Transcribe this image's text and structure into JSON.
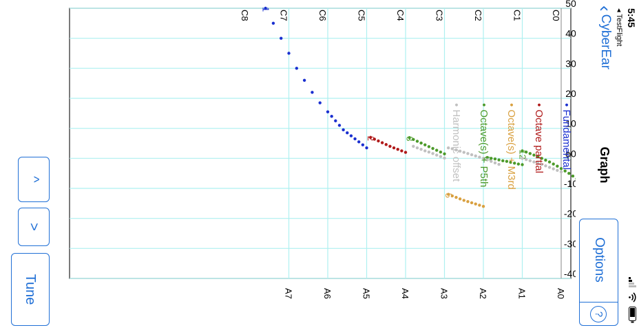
{
  "status_bar": {
    "time": "5:45",
    "back_app": "◂ TestFlight"
  },
  "nav": {
    "back_label": "CyberEar",
    "title": "Graph"
  },
  "options": {
    "label": "Options",
    "help_symbol": "?"
  },
  "buttons": {
    "up": "^",
    "down": ">",
    "tune": "Tune"
  },
  "colors": {
    "accent": "#1f6fd6",
    "grid": "#aef0f0"
  },
  "legend": [
    {
      "label": "Fundamental",
      "color": "#1a2fd0"
    },
    {
      "label": "Octave partial",
      "color": "#b01a1a"
    },
    {
      "label": "Octave(s) + M3rd",
      "color": "#d9a040"
    },
    {
      "label": "Octave(s) + P5th",
      "color": "#4c9a2a"
    },
    {
      "label": "Harmonic offset",
      "color": "#c0c0c0"
    }
  ],
  "chart_data": {
    "type": "scatter",
    "x_tick_labels": [
      "A0",
      "A1",
      "A2",
      "A3",
      "A4",
      "A5",
      "A6",
      "A7"
    ],
    "top_tick_labels": [
      "C0",
      "C1",
      "C2",
      "C3",
      "C4",
      "C5",
      "C6",
      "C7",
      "C8"
    ],
    "y_tick_labels": [
      "50",
      "40",
      "30",
      "20",
      "10",
      "ϕ0",
      "-10",
      "-20",
      "-30",
      "-40"
    ],
    "ylim": [
      -40,
      50
    ],
    "series": [
      {
        "name": "Fundamental",
        "label": "1",
        "color": "#1a2fd0",
        "points": [
          [
            5.0,
            3.5
          ],
          [
            5.1,
            4.5
          ],
          [
            5.2,
            5.5
          ],
          [
            5.3,
            6.5
          ],
          [
            5.4,
            7.5
          ],
          [
            5.5,
            8.5
          ],
          [
            5.6,
            9.5
          ],
          [
            5.7,
            11
          ],
          [
            5.8,
            12.5
          ],
          [
            5.9,
            14
          ],
          [
            6.0,
            15.5
          ],
          [
            6.2,
            18.5
          ],
          [
            6.4,
            22
          ],
          [
            6.6,
            26
          ],
          [
            6.8,
            30
          ],
          [
            7.0,
            35
          ],
          [
            7.2,
            40
          ],
          [
            7.4,
            45
          ],
          [
            7.6,
            50
          ]
        ]
      },
      {
        "name": "Octave partial",
        "label": "2",
        "color": "#b01a1a",
        "points": [
          [
            4.0,
            2
          ],
          [
            4.1,
            2.5
          ],
          [
            4.2,
            3
          ],
          [
            4.3,
            3.5
          ],
          [
            4.4,
            4
          ],
          [
            4.5,
            4.6
          ],
          [
            4.6,
            5.2
          ],
          [
            4.7,
            5.8
          ],
          [
            4.8,
            6.4
          ],
          [
            4.9,
            7
          ]
        ]
      },
      {
        "name": "Octave(s) + M3rd",
        "label": "5",
        "color": "#d9a040",
        "points": [
          [
            2.0,
            -16
          ],
          [
            2.1,
            -15.6
          ],
          [
            2.2,
            -15.2
          ],
          [
            2.3,
            -14.8
          ],
          [
            2.4,
            -14.4
          ],
          [
            2.5,
            -14
          ],
          [
            2.6,
            -13.5
          ],
          [
            2.7,
            -13
          ],
          [
            2.8,
            -12.5
          ],
          [
            2.9,
            -12
          ]
        ]
      },
      {
        "name": "Octave(s) + P5th",
        "label": "12",
        "color": "#4c9a2a",
        "points": [
          [
            -0.7,
            -9.5
          ],
          [
            -0.6,
            -8.6
          ],
          [
            -0.5,
            -7.7
          ],
          [
            -0.4,
            -6.8
          ],
          [
            -0.3,
            -5.9
          ],
          [
            -0.2,
            -5
          ],
          [
            -0.1,
            -4.2
          ],
          [
            0,
            -3.4
          ],
          [
            0.1,
            -2.6
          ],
          [
            0.2,
            -1.9
          ],
          [
            0.3,
            -1.2
          ],
          [
            0.4,
            -0.6
          ],
          [
            0.5,
            0
          ],
          [
            0.6,
            0.6
          ],
          [
            0.7,
            1.1
          ],
          [
            0.8,
            1.6
          ],
          [
            0.9,
            2.1
          ],
          [
            1.0,
            2.5
          ]
        ]
      },
      {
        "name": "Octave(s) + P5th",
        "label": "6",
        "color": "#4c9a2a",
        "points": [
          [
            1.0,
            -2.1
          ],
          [
            1.1,
            -1.9
          ],
          [
            1.2,
            -1.6
          ],
          [
            1.3,
            -1.3
          ],
          [
            1.4,
            -1
          ],
          [
            1.5,
            -0.8
          ],
          [
            1.6,
            -0.5
          ],
          [
            1.7,
            -0.2
          ],
          [
            1.8,
            0
          ],
          [
            1.9,
            0.3
          ]
        ]
      },
      {
        "name": "Octave(s) + P5th",
        "label": "3",
        "color": "#4c9a2a",
        "points": [
          [
            3.0,
            1.5
          ],
          [
            3.1,
            2.1
          ],
          [
            3.2,
            2.7
          ],
          [
            3.3,
            3.3
          ],
          [
            3.4,
            3.9
          ],
          [
            3.5,
            4.5
          ],
          [
            3.6,
            5.1
          ],
          [
            3.7,
            5.7
          ],
          [
            3.8,
            6.3
          ],
          [
            3.9,
            6.9
          ]
        ]
      },
      {
        "name": "Harmonic offset",
        "label": "",
        "color": "#c0c0c0",
        "points": [
          [
            0,
            -4.5
          ],
          [
            0.1,
            -4
          ],
          [
            0.2,
            -3.5
          ],
          [
            0.3,
            -3
          ],
          [
            0.4,
            -2.5
          ],
          [
            0.5,
            -2
          ],
          [
            0.6,
            -1.6
          ],
          [
            0.7,
            -1.2
          ],
          [
            0.8,
            -0.8
          ],
          [
            0.9,
            -0.4
          ],
          [
            1.0,
            0
          ],
          [
            1.6,
            -2
          ],
          [
            1.7,
            -1.5
          ],
          [
            1.8,
            -1
          ],
          [
            1.9,
            -0.5
          ],
          [
            2.0,
            0
          ],
          [
            2.1,
            0.4
          ],
          [
            2.2,
            0.8
          ],
          [
            2.3,
            1.2
          ],
          [
            2.4,
            1.6
          ],
          [
            2.5,
            2
          ],
          [
            2.6,
            2.4
          ],
          [
            2.7,
            2.8
          ],
          [
            2.8,
            3.2
          ],
          [
            2.9,
            3.5
          ],
          [
            3.0,
            0.1
          ],
          [
            3.1,
            0.6
          ],
          [
            3.2,
            1.1
          ],
          [
            3.3,
            1.6
          ],
          [
            3.4,
            2.1
          ],
          [
            3.5,
            2.5
          ],
          [
            3.6,
            3
          ],
          [
            3.7,
            3.5
          ],
          [
            3.8,
            4
          ]
        ]
      }
    ]
  }
}
